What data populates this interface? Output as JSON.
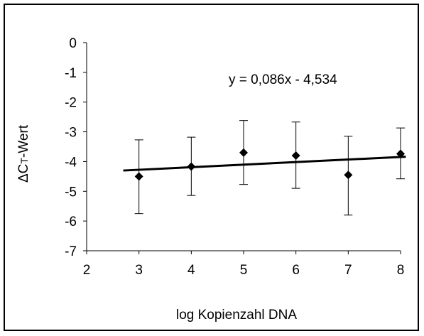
{
  "chart_data": {
    "type": "scatter",
    "xlabel": "log Kopienzahl DNA",
    "ylabel_prefix": "ΔC",
    "ylabel_subscript": "T",
    "ylabel_suffix": "-Wert",
    "xlim": [
      2,
      8
    ],
    "ylim": [
      -7,
      0
    ],
    "x_ticks": [
      2,
      3,
      4,
      5,
      6,
      7,
      8
    ],
    "y_ticks": [
      0,
      -1,
      -2,
      -3,
      -4,
      -5,
      -6,
      -7
    ],
    "x_tick_labels": [
      "2",
      "3",
      "4",
      "5",
      "6",
      "7",
      "8"
    ],
    "y_tick_labels": [
      "0",
      "-1",
      "-2",
      "-3",
      "-4",
      "-5",
      "-6",
      "-7"
    ],
    "points": [
      {
        "x": 3,
        "y": -4.5,
        "err_low": -5.75,
        "err_high": -3.27
      },
      {
        "x": 4,
        "y": -4.17,
        "err_low": -5.14,
        "err_high": -3.18
      },
      {
        "x": 5,
        "y": -3.7,
        "err_low": -4.77,
        "err_high": -2.62
      },
      {
        "x": 6,
        "y": -3.8,
        "err_low": -4.9,
        "err_high": -2.67
      },
      {
        "x": 7,
        "y": -4.45,
        "err_low": -5.8,
        "err_high": -3.15
      },
      {
        "x": 8,
        "y": -3.74,
        "err_low": -4.58,
        "err_high": -2.87
      }
    ],
    "trendline": {
      "slope": 0.086,
      "intercept": -4.534,
      "x_start": 2.7,
      "x_end": 8.1
    },
    "equation_text": "y = 0,086x - 4,534",
    "grid": false,
    "marker": "diamond",
    "color": "#000000"
  }
}
